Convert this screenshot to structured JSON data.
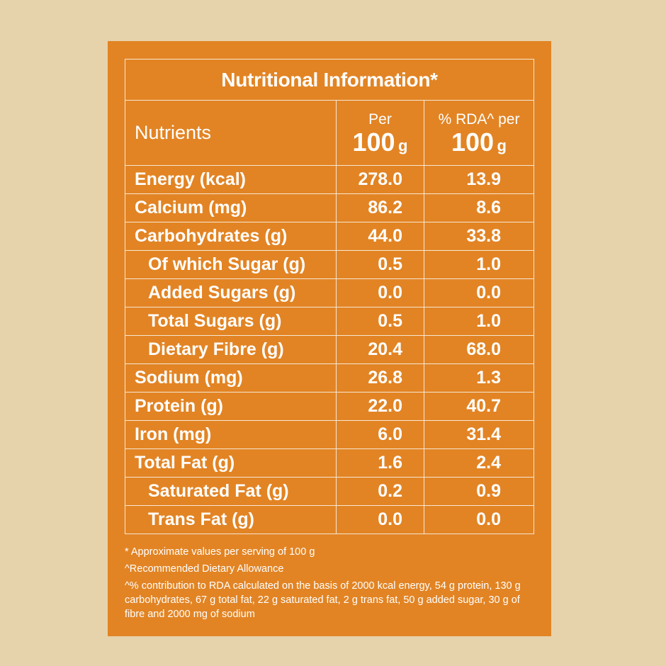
{
  "colors": {
    "background": "#e6d3ac",
    "panel": "#e28424",
    "text": "#ffffff",
    "border": "#f7e7d2"
  },
  "table": {
    "title": "Nutritional Information*",
    "headers": {
      "nutrients": "Nutrients",
      "per_top": "Per",
      "per_value": "100",
      "per_unit": "g",
      "rda_top": "% RDA^ per",
      "rda_value": "100",
      "rda_unit": "g"
    },
    "rows": [
      {
        "name": "Energy (kcal)",
        "per100g": "278.0",
        "rda": "13.9"
      },
      {
        "name": "Calcium (mg)",
        "per100g": "86.2",
        "rda": "8.6"
      },
      {
        "name": "Carbohydrates (g)",
        "per100g": "44.0",
        "rda": "33.8"
      },
      {
        "name": "Of which Sugar (g)",
        "per100g": "0.5",
        "rda": "1.0"
      },
      {
        "name": "Added Sugars (g)",
        "per100g": "0.0",
        "rda": "0.0"
      },
      {
        "name": "Total Sugars (g)",
        "per100g": "0.5",
        "rda": "1.0"
      },
      {
        "name": "Dietary Fibre (g)",
        "per100g": "20.4",
        "rda": "68.0"
      },
      {
        "name": "Sodium (mg)",
        "per100g": "26.8",
        "rda": "1.3"
      },
      {
        "name": "Protein (g)",
        "per100g": "22.0",
        "rda": "40.7"
      },
      {
        "name": "Iron (mg)",
        "per100g": "6.0",
        "rda": "31.4"
      },
      {
        "name": "Total Fat (g)",
        "per100g": "1.6",
        "rda": "2.4"
      },
      {
        "name": "Saturated Fat (g)",
        "per100g": "0.2",
        "rda": "0.9"
      },
      {
        "name": "Trans Fat (g)",
        "per100g": "0.0",
        "rda": "0.0"
      }
    ]
  },
  "footnotes": {
    "approx": "* Approximate values per serving of 100 g",
    "rda": "^Recommended Dietary Allowance",
    "basis": "^% contribution to RDA calculated on the basis of 2000 kcal energy, 54 g protein, 130 g carbohydrates, 67 g total fat, 22 g saturated fat, 2 g trans fat, 50 g added sugar, 30 g of fibre and 2000 mg of sodium"
  }
}
